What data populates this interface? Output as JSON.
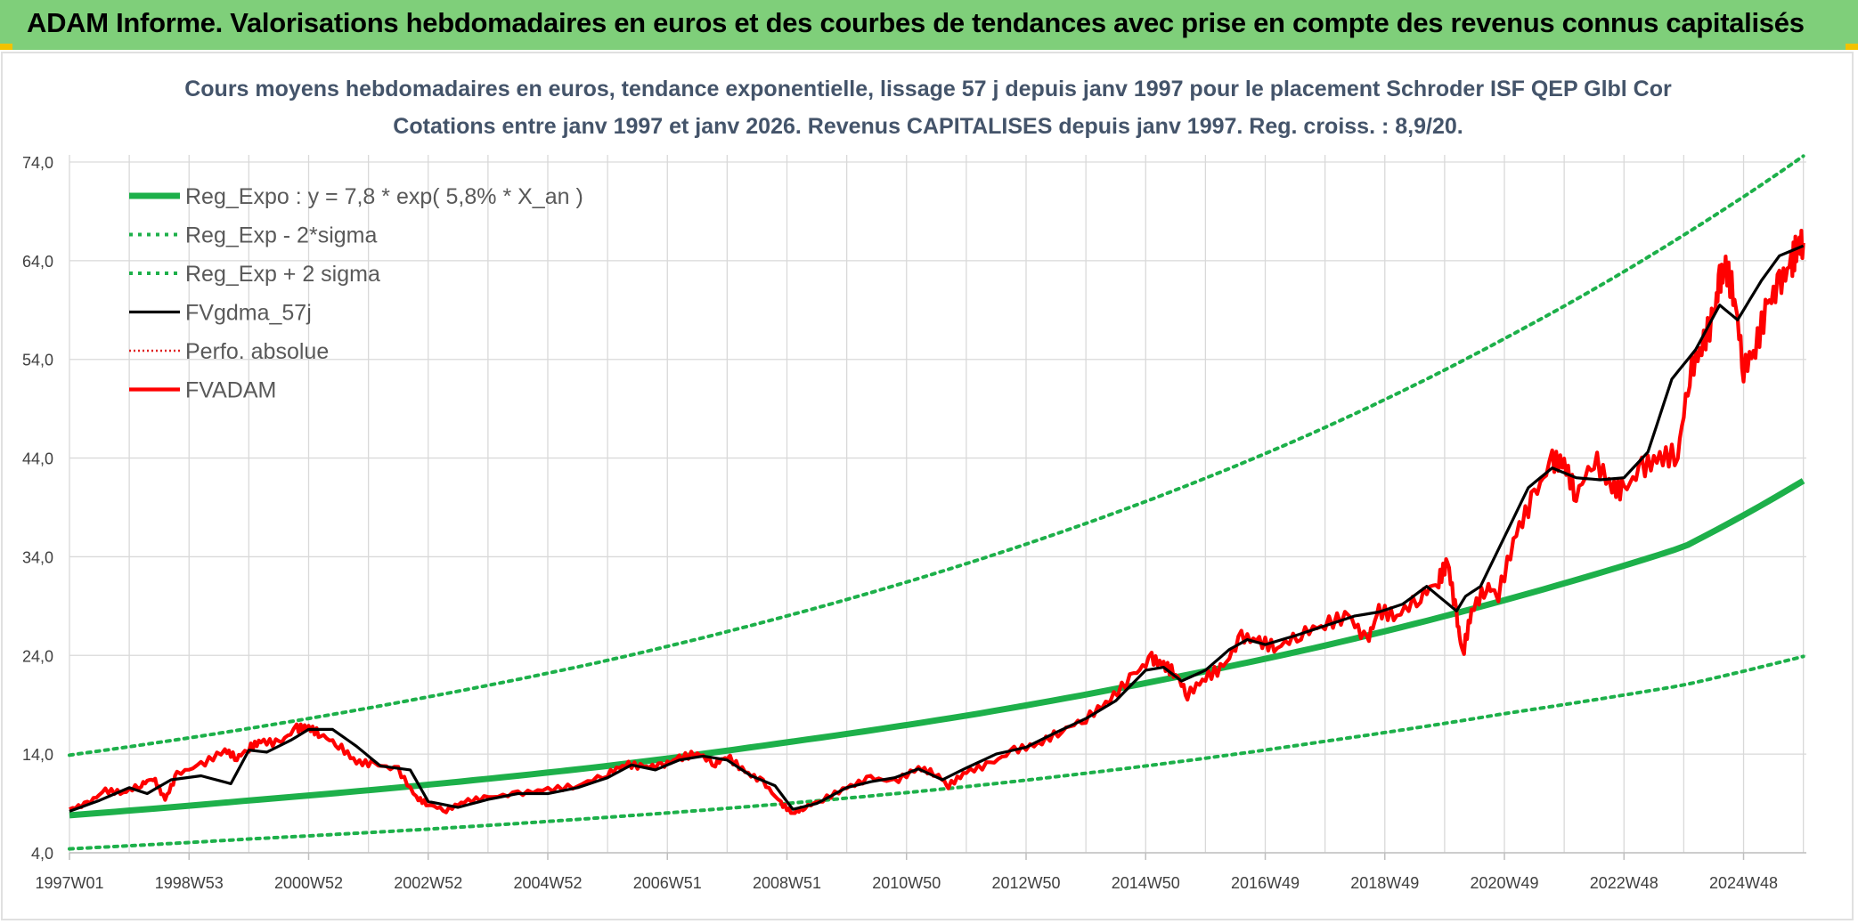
{
  "banner": {
    "title": "ADAM Informe. Valorisations hebdomadaires en euros et des courbes de tendances avec prise en compte des revenus connus capitalisés"
  },
  "colors": {
    "banner_bg": "#7fcf7a",
    "reg_expo": "#1db04a",
    "sigma_bands": "#1db04a",
    "fvgdma": "#000000",
    "perfo": "#e02020",
    "fvadam": "#ff0000",
    "gridline": "#d9d9d9"
  },
  "chart_data": {
    "type": "line",
    "title": "Cours moyens hebdomadaires en euros, tendance exponentielle, lissage 57 j depuis janv 1997 pour le placement Schroder ISF QEP Glbl Cor",
    "subtitle": "Cotations entre janv 1997 et janv 2026. Revenus CAPITALISES depuis janv 1997. Reg. croiss. : 8,9/20.",
    "xlabel": "",
    "ylabel": "",
    "ylim": [
      4.0,
      74.0
    ],
    "y_ticks": [
      "4,0",
      "14,0",
      "24,0",
      "34,0",
      "44,0",
      "54,0",
      "64,0",
      "74,0"
    ],
    "x_tick_labels": [
      "1997W01",
      "1998W53",
      "2000W52",
      "2002W52",
      "2004W52",
      "2006W51",
      "2008W51",
      "2010W50",
      "2012W50",
      "2014W50",
      "2016W49",
      "2018W49",
      "2020W49",
      "2022W48",
      "2024W48"
    ],
    "x_range_years": [
      1997.0,
      2026.05
    ],
    "grid": true,
    "legend_position": "top-left",
    "series": [
      {
        "name": "Reg_Expo : y = 7,8 * exp( 5,8% *  X_an )",
        "style": "solid-thick",
        "x": [
          1997,
          2000,
          2003,
          2006,
          2009,
          2012,
          2015,
          2018,
          2021,
          2024,
          2026
        ],
        "values": [
          7.8,
          9.3,
          10.9,
          12.8,
          15.2,
          17.9,
          21.2,
          25.0,
          29.6,
          35.0,
          41.7
        ]
      },
      {
        "name": "Reg_Exp - 2*sigma",
        "style": "dotted",
        "x": [
          1997,
          2000,
          2003,
          2006,
          2009,
          2012,
          2015,
          2018,
          2021,
          2024,
          2026
        ],
        "values": [
          4.4,
          5.4,
          6.4,
          7.6,
          9.0,
          10.7,
          12.8,
          15.3,
          18.1,
          21.0,
          23.9
        ]
      },
      {
        "name": "Reg_Exp + 2 sigma",
        "style": "dotted",
        "x": [
          1997,
          2000,
          2003,
          2006,
          2009,
          2012,
          2015,
          2018,
          2021,
          2024,
          2026
        ],
        "values": [
          13.9,
          16.6,
          19.8,
          23.5,
          28.0,
          33.3,
          39.6,
          47.1,
          56.1,
          66.6,
          74.6
        ]
      },
      {
        "name": "FVgdma_57j",
        "style": "solid-thin",
        "x": [
          1997.0,
          1997.5,
          1998.0,
          1998.3,
          1998.7,
          1999.2,
          1999.7,
          2000.0,
          2000.3,
          2000.7,
          2001.0,
          2001.4,
          2001.8,
          2002.2,
          2002.7,
          2003.0,
          2003.5,
          2004.0,
          2004.5,
          2005.0,
          2005.5,
          2006.0,
          2006.4,
          2006.8,
          2007.2,
          2007.6,
          2008.0,
          2008.4,
          2008.8,
          2009.1,
          2009.5,
          2010.0,
          2010.4,
          2010.8,
          2011.2,
          2011.6,
          2012.0,
          2012.5,
          2013.0,
          2013.5,
          2014.0,
          2014.5,
          2015.0,
          2015.3,
          2015.6,
          2016.0,
          2016.4,
          2016.7,
          2017.0,
          2017.5,
          2018.0,
          2018.5,
          2018.9,
          2019.3,
          2019.7,
          2020.0,
          2020.2,
          2020.35,
          2020.6,
          2021.0,
          2021.4,
          2021.8,
          2022.2,
          2022.6,
          2023.0,
          2023.4,
          2023.8,
          2024.2,
          2024.6,
          2024.9,
          2025.1,
          2025.3,
          2025.6,
          2026.0
        ],
        "values": [
          8.2,
          9.3,
          10.6,
          10.0,
          11.4,
          11.8,
          11.0,
          14.4,
          14.2,
          15.4,
          16.5,
          16.5,
          14.8,
          12.8,
          12.4,
          9.2,
          8.6,
          9.4,
          10.0,
          10.0,
          10.6,
          11.6,
          12.9,
          12.4,
          13.4,
          13.8,
          13.4,
          11.8,
          10.8,
          8.4,
          9.0,
          10.6,
          11.2,
          11.6,
          12.5,
          11.4,
          12.6,
          14.0,
          14.7,
          16.2,
          17.6,
          19.4,
          22.5,
          22.8,
          21.4,
          22.5,
          24.6,
          25.6,
          25.1,
          26.0,
          27.0,
          28.0,
          28.4,
          29.2,
          31.0,
          29.5,
          28.5,
          30.0,
          31.0,
          36.0,
          41.0,
          43.0,
          42.0,
          41.8,
          42.0,
          44.6,
          52.0,
          55.0,
          59.5,
          58.0,
          60.0,
          62.0,
          64.5,
          65.5
        ]
      },
      {
        "name": "Perfo. absolue",
        "style": "dotted-red",
        "values": []
      },
      {
        "name": "FVADAM",
        "style": "solid-red",
        "x": [
          1997.0,
          1997.3,
          1997.6,
          1997.9,
          1998.2,
          1998.4,
          1998.6,
          1998.8,
          1999.2,
          1999.6,
          1999.8,
          2000.0,
          2000.2,
          2000.5,
          2000.8,
          2001.0,
          2001.2,
          2001.5,
          2001.8,
          2002.1,
          2002.5,
          2002.8,
          2003.0,
          2003.3,
          2003.6,
          2004.0,
          2004.5,
          2005.0,
          2005.5,
          2006.0,
          2006.3,
          2006.6,
          2006.9,
          2007.2,
          2007.5,
          2007.8,
          2008.0,
          2008.3,
          2008.6,
          2008.9,
          2009.1,
          2009.3,
          2009.6,
          2010.0,
          2010.4,
          2010.8,
          2011.2,
          2011.5,
          2011.7,
          2012.0,
          2012.4,
          2012.8,
          2013.2,
          2013.6,
          2014.0,
          2014.4,
          2014.8,
          2015.1,
          2015.3,
          2015.5,
          2015.7,
          2016.0,
          2016.3,
          2016.6,
          2016.9,
          2017.2,
          2017.6,
          2018.0,
          2018.4,
          2018.7,
          2018.9,
          2019.2,
          2019.6,
          2019.9,
          2020.05,
          2020.2,
          2020.3,
          2020.45,
          2020.7,
          2020.9,
          2021.2,
          2021.5,
          2021.8,
          2022.0,
          2022.2,
          2022.5,
          2022.8,
          2023.0,
          2023.3,
          2023.6,
          2023.9,
          2024.1,
          2024.3,
          2024.5,
          2024.6,
          2024.7,
          2024.85,
          2025.0,
          2025.2,
          2025.4,
          2025.6,
          2025.8,
          2025.9,
          2026.0
        ],
        "values": [
          8.4,
          9.0,
          10.3,
          10.1,
          10.9,
          11.6,
          9.4,
          12.0,
          12.9,
          14.4,
          13.6,
          14.6,
          15.3,
          15.1,
          16.6,
          16.7,
          16.0,
          14.9,
          13.2,
          13.0,
          12.4,
          9.6,
          8.9,
          8.3,
          9.2,
          9.6,
          10.0,
          10.4,
          10.8,
          12.0,
          13.0,
          12.7,
          12.8,
          13.6,
          14.1,
          13.0,
          13.8,
          12.2,
          11.2,
          9.0,
          8.0,
          8.6,
          9.4,
          10.6,
          11.6,
          11.2,
          12.6,
          12.0,
          10.8,
          12.2,
          13.0,
          14.4,
          15.0,
          16.4,
          17.6,
          19.5,
          22.0,
          23.7,
          23.0,
          22.2,
          20.0,
          21.8,
          22.8,
          25.9,
          25.4,
          24.8,
          26.2,
          27.2,
          28.0,
          25.4,
          28.5,
          28.0,
          30.0,
          31.6,
          33.5,
          28.0,
          24.0,
          28.5,
          31.0,
          30.2,
          36.4,
          40.2,
          43.7,
          43.5,
          40.2,
          44.0,
          41.0,
          40.7,
          43.0,
          44.0,
          44.4,
          52.6,
          55.3,
          58.3,
          62.0,
          63.3,
          60.4,
          53.0,
          55.2,
          59.5,
          61.6,
          63.6,
          65.6,
          65.8
        ]
      }
    ]
  }
}
